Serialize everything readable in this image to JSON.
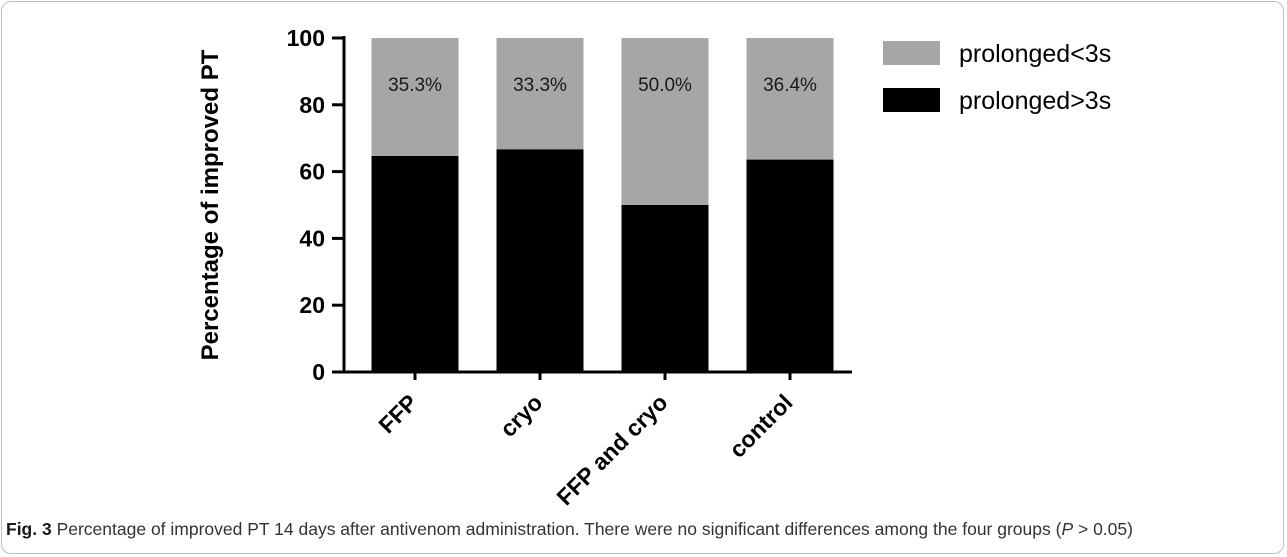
{
  "chart_data": {
    "type": "bar",
    "stacked": true,
    "categories": [
      "FFP",
      "cryo",
      "FFP and cryo",
      "control"
    ],
    "series": [
      {
        "name": "prolonged>3s",
        "values": [
          64.7,
          66.7,
          50.0,
          63.6
        ],
        "color": "#000000"
      },
      {
        "name": "prolonged<3s",
        "values": [
          35.3,
          33.3,
          50.0,
          36.4
        ],
        "color": "#a6a6a6"
      }
    ],
    "data_labels": [
      "35.3%",
      "33.3%",
      "50.0%",
      "36.4%"
    ],
    "ylabel": "Percentage of improved PT",
    "xlabel": "",
    "ylim": [
      0,
      100
    ],
    "yticks": [
      0,
      20,
      40,
      60,
      80,
      100
    ],
    "legend_order": [
      "prolonged<3s",
      "prolonged>3s"
    ],
    "legend_position": "top-right",
    "grid": false
  },
  "caption": {
    "label": "Fig. 3",
    "text": "Percentage of improved PT 14 days after antivenom administration. There were no significant differences among the four groups (",
    "p_symbol": "P",
    "p_rest": " > 0.05)"
  }
}
